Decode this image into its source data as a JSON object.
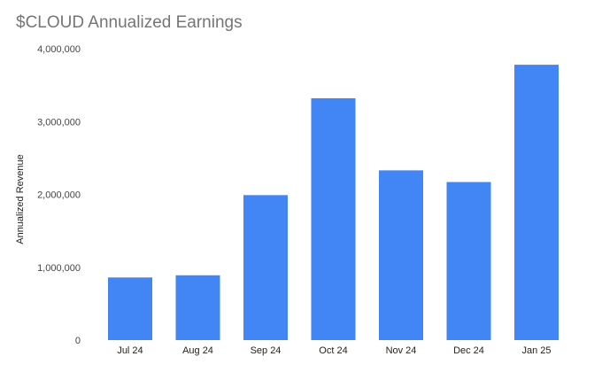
{
  "chart_data": {
    "type": "bar",
    "title": "$CLOUD Annualized Earnings",
    "xlabel": "",
    "ylabel": "Annualized Revenue",
    "categories": [
      "Jul 24",
      "Aug 24",
      "Sep 24",
      "Oct 24",
      "Nov 24",
      "Dec 24",
      "Jan 25"
    ],
    "values": [
      860000,
      890000,
      1990000,
      3320000,
      2330000,
      2170000,
      3780000
    ],
    "ylim": [
      0,
      4000000
    ],
    "yticks": [
      0,
      1000000,
      2000000,
      3000000,
      4000000
    ],
    "ytick_labels": [
      "0",
      "1,000,000",
      "2,000,000",
      "3,000,000",
      "4,000,000"
    ],
    "grid": false,
    "legend": "none",
    "bar_color": "#4285f4"
  }
}
